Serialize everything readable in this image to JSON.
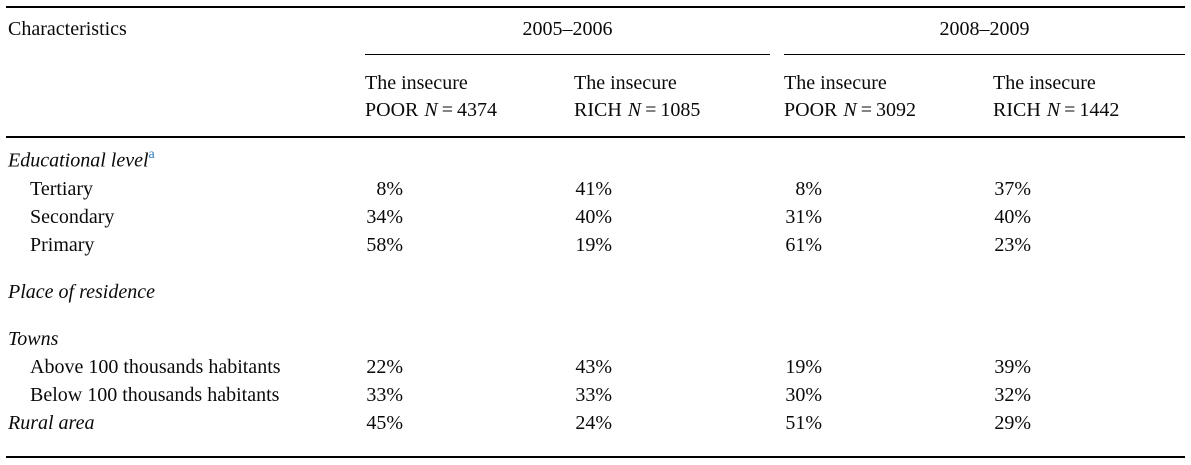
{
  "page": {
    "background": "#ffffff",
    "text_color": "#0a0a0a",
    "footnote_color": "#2e7cbf"
  },
  "table": {
    "col1_header": "Characteristics",
    "groups": [
      {
        "label": "2005–2006"
      },
      {
        "label": "2008–2009"
      }
    ],
    "columns": [
      {
        "line1": "The insecure",
        "kind": "POOR",
        "n_symbol": "N",
        "equals": "=",
        "n_value": "4374"
      },
      {
        "line1": "The insecure",
        "kind": "RICH",
        "n_symbol": "N",
        "equals": "=",
        "n_value": "1085"
      },
      {
        "line1": "The insecure",
        "kind": "POOR",
        "n_symbol": "N",
        "equals": "=",
        "n_value": "3092"
      },
      {
        "line1": "The insecure",
        "kind": "RICH",
        "n_symbol": "N",
        "equals": "=",
        "n_value": "1442"
      }
    ],
    "rows": [
      {
        "type": "section",
        "label": "Educational level",
        "sup": "a",
        "values": [
          "",
          "",
          "",
          ""
        ]
      },
      {
        "type": "indent",
        "label": "Tertiary",
        "values": [
          "8%",
          "41%",
          "8%",
          "37%"
        ]
      },
      {
        "type": "indent",
        "label": "Secondary",
        "values": [
          "34%",
          "40%",
          "31%",
          "40%"
        ]
      },
      {
        "type": "indent",
        "label": "Primary",
        "values": [
          "58%",
          "19%",
          "61%",
          "23%"
        ]
      },
      {
        "type": "section",
        "label": "Place of residence",
        "values": [
          "",
          "",
          "",
          ""
        ]
      },
      {
        "type": "section",
        "label": "Towns",
        "values": [
          "",
          "",
          "",
          ""
        ]
      },
      {
        "type": "indent",
        "label": "Above 100 thousands habitants",
        "values": [
          "22%",
          "43%",
          "19%",
          "39%"
        ]
      },
      {
        "type": "indent",
        "label": "Below 100 thousands habitants",
        "values": [
          "33%",
          "33%",
          "30%",
          "32%"
        ]
      },
      {
        "type": "section",
        "label": "Rural area",
        "values": [
          "45%",
          "24%",
          "51%",
          "29%"
        ]
      }
    ]
  },
  "chart_data": {
    "type": "table",
    "title": "Characteristics of the insecure poor and insecure rich, 2005–2006 and 2008–2009",
    "columns": [
      "Characteristics",
      "2005–2006 The insecure POOR N=4374",
      "2005–2006 The insecure RICH N=1085",
      "2008–2009 The insecure POOR N=3092",
      "2008–2009 The insecure RICH N=1442"
    ],
    "rows": [
      [
        "Educational level (a)",
        null,
        null,
        null,
        null
      ],
      [
        "Tertiary",
        8,
        41,
        8,
        37
      ],
      [
        "Secondary",
        34,
        40,
        31,
        40
      ],
      [
        "Primary",
        58,
        19,
        61,
        23
      ],
      [
        "Place of residence",
        null,
        null,
        null,
        null
      ],
      [
        "Towns",
        null,
        null,
        null,
        null
      ],
      [
        "Above 100 thousands habitants",
        22,
        43,
        19,
        39
      ],
      [
        "Below 100 thousands habitants",
        33,
        33,
        30,
        32
      ],
      [
        "Rural area",
        45,
        24,
        51,
        29
      ]
    ],
    "units": "percent"
  }
}
